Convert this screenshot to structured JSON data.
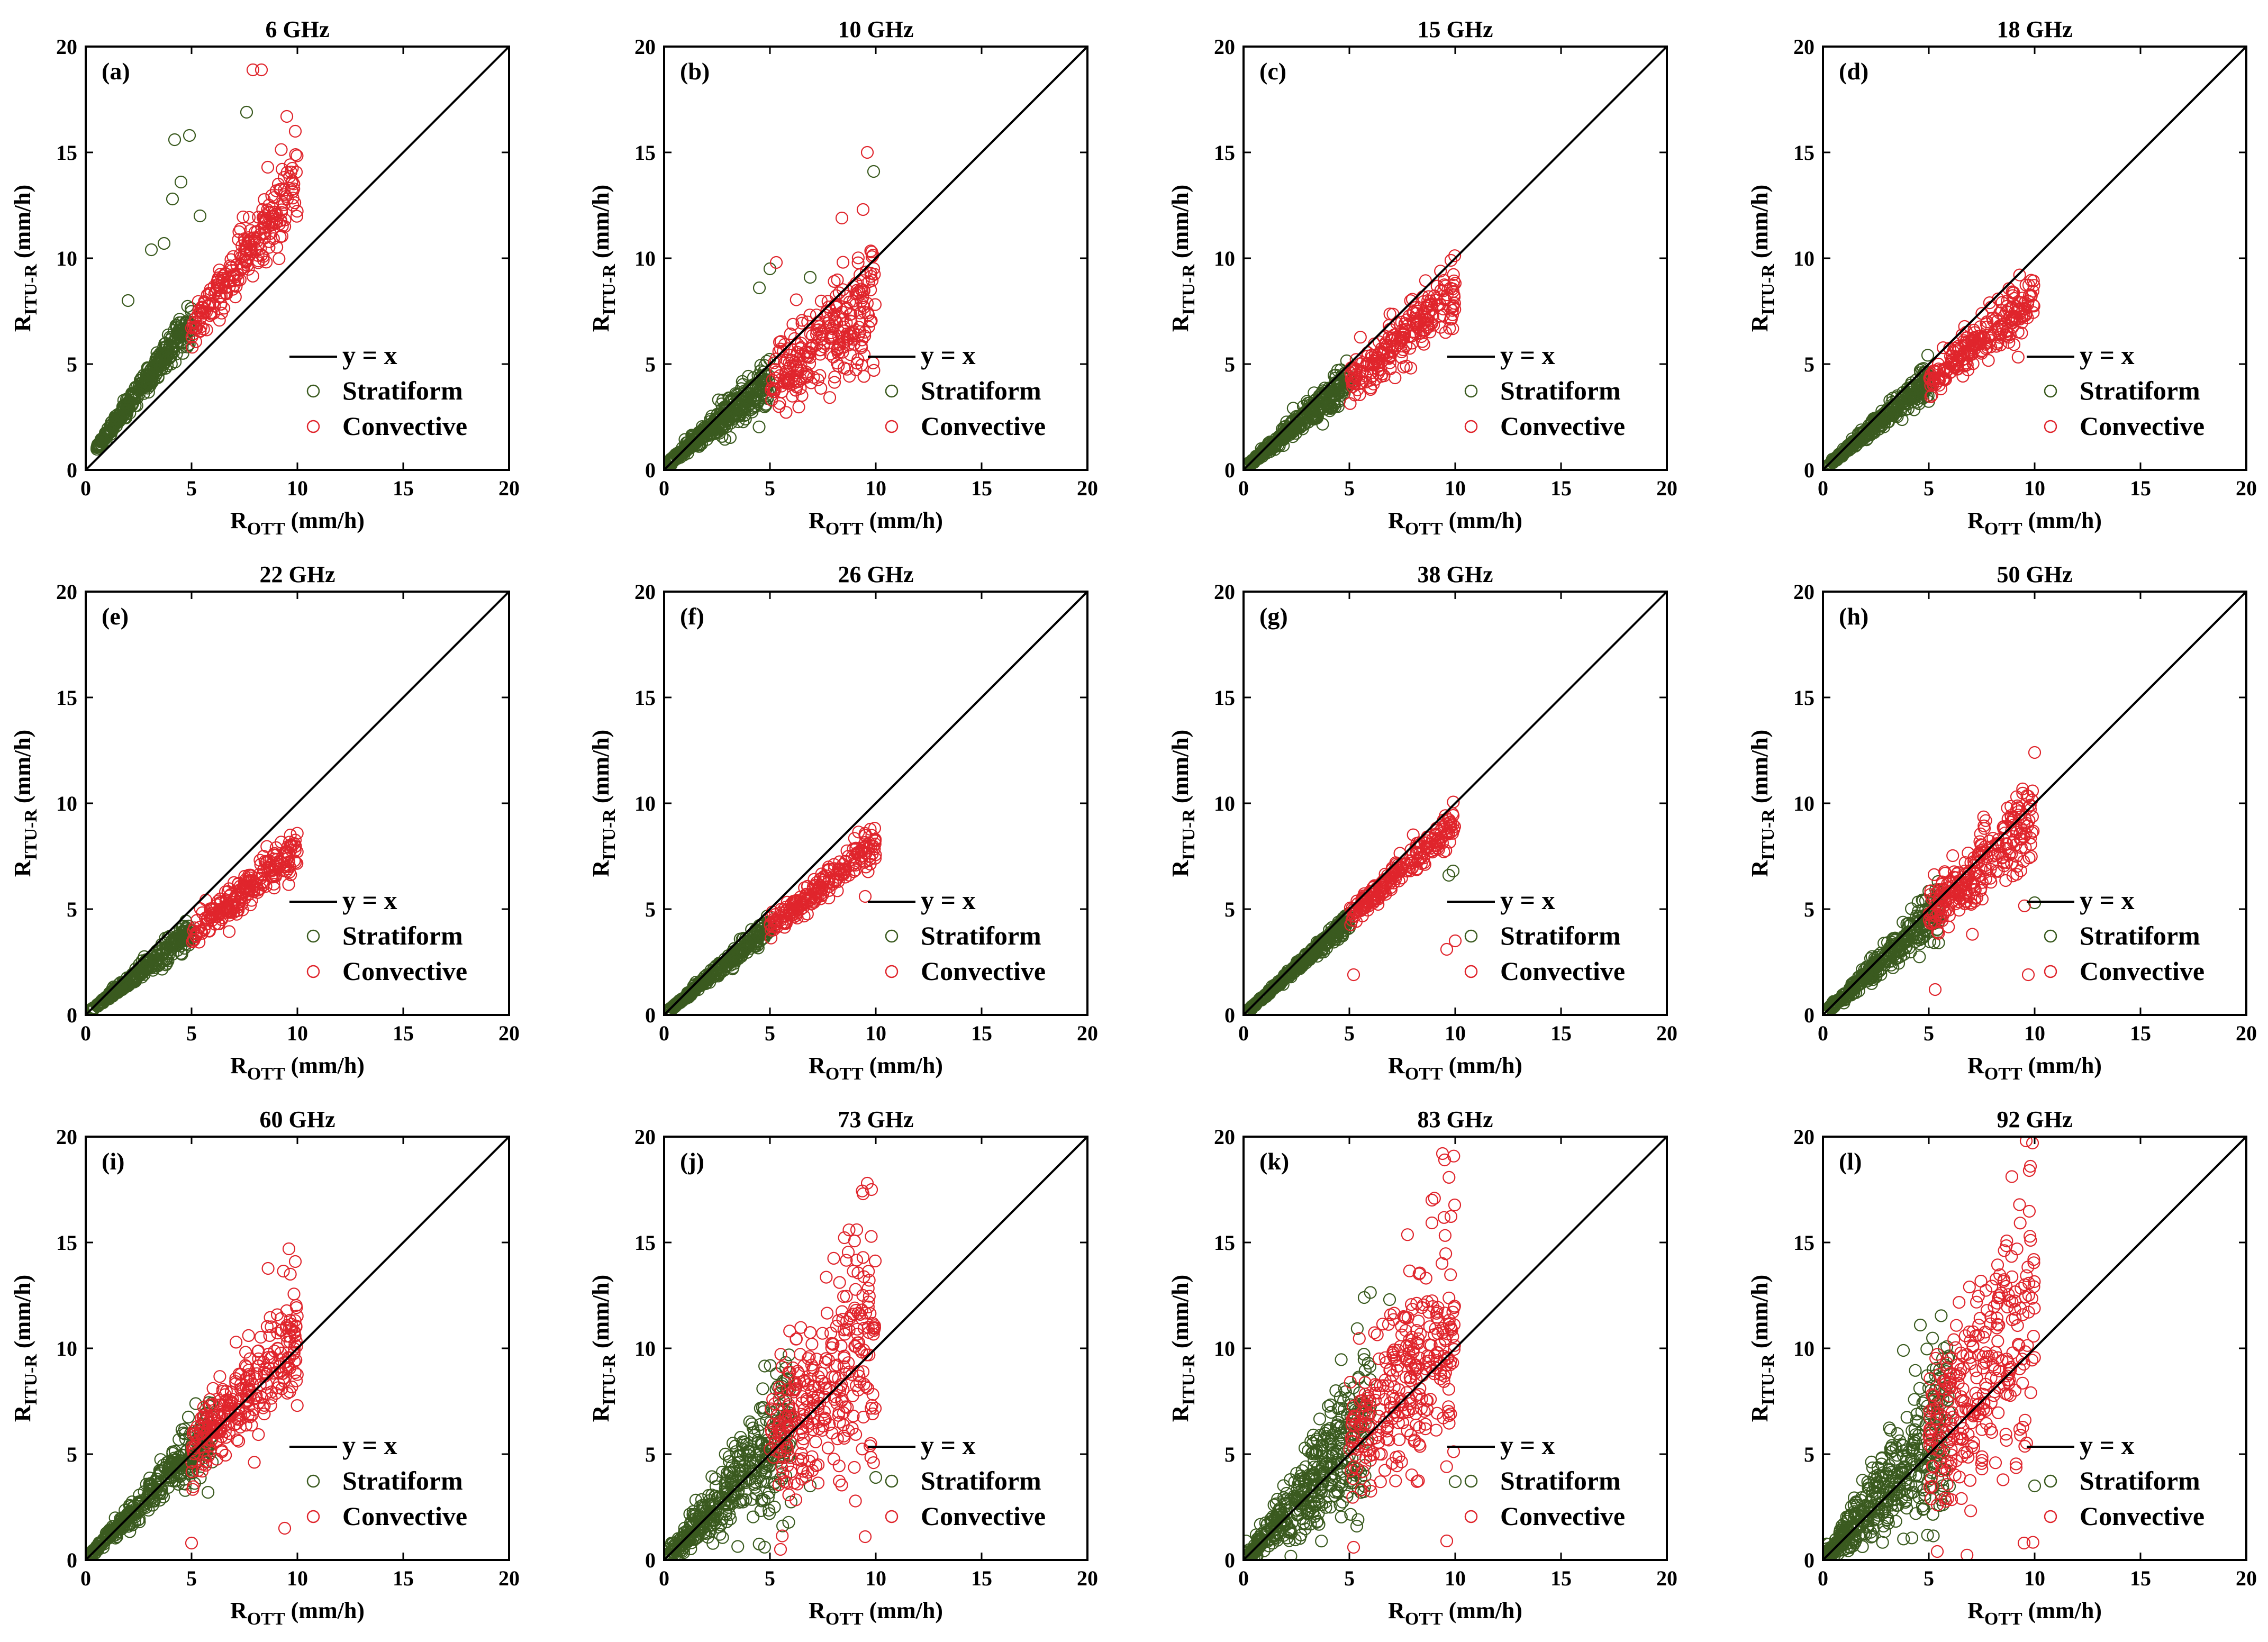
{
  "figure": {
    "colors": {
      "stratiform": "#3a5a1f",
      "convective": "#e0252c",
      "reference_line": "#000000"
    }
  },
  "chart_data": [
    {
      "type": "scatter",
      "tag": "(a)",
      "title": "6 GHz",
      "xlabel": "R",
      "xlabel_sub": "OTT",
      "xlabel_unit": " (mm/h)",
      "ylabel": "R",
      "ylabel_sub": "ITU-R",
      "ylabel_unit": " (mm/h)",
      "xlim": [
        0,
        20
      ],
      "ylim": [
        0,
        20
      ],
      "xticks": [
        "0",
        "5",
        "10",
        "15",
        "20"
      ],
      "yticks": [
        "0",
        "5",
        "10",
        "15",
        "20"
      ],
      "legend": {
        "position": "bottom-right",
        "line": "y = x",
        "stratiform": "Stratiform",
        "convective": "Convective"
      },
      "series": [
        {
          "name": "Stratiform",
          "model": {
            "a": 1.35,
            "b": 0.35,
            "spread": 0.11,
            "xmin": 0.5,
            "xmax": 5,
            "n": 360,
            "outliers": [
              [
                2.0,
                8.0
              ],
              [
                3.1,
                10.4
              ],
              [
                3.7,
                10.7
              ],
              [
                4.1,
                12.8
              ],
              [
                4.5,
                13.6
              ],
              [
                4.2,
                15.6
              ],
              [
                4.9,
                15.8
              ],
              [
                5.4,
                12.0
              ],
              [
                7.6,
                16.9
              ]
            ]
          }
        },
        {
          "name": "Convective",
          "model": {
            "a": 1.32,
            "b": 0.2,
            "spread": 0.09,
            "xmin": 5,
            "xmax": 10,
            "n": 240,
            "outliers": [
              [
                7.9,
                18.9
              ],
              [
                8.3,
                18.9
              ],
              [
                9.5,
                16.7
              ],
              [
                9.9,
                16.0
              ],
              [
                8.6,
                14.3
              ]
            ]
          }
        }
      ]
    },
    {
      "type": "scatter",
      "tag": "(b)",
      "title": "10 GHz",
      "xlabel": "R",
      "xlabel_sub": "OTT",
      "xlabel_unit": " (mm/h)",
      "ylabel": "R",
      "ylabel_sub": "ITU-R",
      "ylabel_unit": " (mm/h)",
      "xlim": [
        0,
        20
      ],
      "ylim": [
        0,
        20
      ],
      "xticks": [
        "0",
        "5",
        "10",
        "15",
        "20"
      ],
      "yticks": [
        "0",
        "5",
        "10",
        "15",
        "20"
      ],
      "legend": {
        "position": "bottom-right",
        "line": "y = x",
        "stratiform": "Stratiform",
        "convective": "Convective"
      },
      "series": [
        {
          "name": "Stratiform",
          "model": {
            "a": 0.82,
            "b": 0.15,
            "spread": 0.13,
            "xmin": 0.2,
            "xmax": 5,
            "n": 360,
            "outliers": [
              [
                4.5,
                8.6
              ],
              [
                5.0,
                9.5
              ],
              [
                6.9,
                9.1
              ],
              [
                9.9,
                14.1
              ]
            ]
          }
        },
        {
          "name": "Convective",
          "model": {
            "a": 0.78,
            "b": 0.1,
            "spread": 0.14,
            "xmin": 5,
            "xmax": 10,
            "n": 260,
            "outliers": [
              [
                9.6,
                15.0
              ],
              [
                5.3,
                9.8
              ],
              [
                9.4,
                12.3
              ],
              [
                8.4,
                11.9
              ]
            ]
          }
        }
      ]
    },
    {
      "type": "scatter",
      "tag": "(c)",
      "title": "15 GHz",
      "xlabel": "R",
      "xlabel_sub": "OTT",
      "xlabel_unit": " (mm/h)",
      "ylabel": "R",
      "ylabel_sub": "ITU-R",
      "ylabel_unit": " (mm/h)",
      "xlim": [
        0,
        20
      ],
      "ylim": [
        0,
        20
      ],
      "xticks": [
        "0",
        "5",
        "10",
        "15",
        "20"
      ],
      "yticks": [
        "0",
        "5",
        "10",
        "15",
        "20"
      ],
      "legend": {
        "position": "bottom-right",
        "line": "y = x",
        "stratiform": "Stratiform",
        "convective": "Convective"
      },
      "series": [
        {
          "name": "Stratiform",
          "model": {
            "a": 0.84,
            "b": 0.05,
            "spread": 0.1,
            "xmin": 0.2,
            "xmax": 5,
            "n": 340,
            "outliers": []
          }
        },
        {
          "name": "Convective",
          "model": {
            "a": 0.82,
            "b": 0.05,
            "spread": 0.08,
            "xmin": 5,
            "xmax": 10,
            "n": 240,
            "outliers": [
              [
                9.8,
                9.9
              ]
            ]
          }
        }
      ]
    },
    {
      "type": "scatter",
      "tag": "(d)",
      "title": "18 GHz",
      "xlabel": "R",
      "xlabel_sub": "OTT",
      "xlabel_unit": " (mm/h)",
      "ylabel": "R",
      "ylabel_sub": "ITU-R",
      "ylabel_unit": " (mm/h)",
      "xlim": [
        0,
        20
      ],
      "ylim": [
        0,
        20
      ],
      "xticks": [
        "0",
        "5",
        "10",
        "15",
        "20"
      ],
      "yticks": [
        "0",
        "5",
        "10",
        "15",
        "20"
      ],
      "legend": {
        "position": "bottom-right",
        "line": "y = x",
        "stratiform": "Stratiform",
        "convective": "Convective"
      },
      "series": [
        {
          "name": "Stratiform",
          "model": {
            "a": 0.86,
            "b": 0.0,
            "spread": 0.08,
            "xmin": 0.2,
            "xmax": 5,
            "n": 340,
            "outliers": []
          }
        },
        {
          "name": "Convective",
          "model": {
            "a": 0.82,
            "b": 0.0,
            "spread": 0.07,
            "xmin": 5,
            "xmax": 10,
            "n": 240,
            "outliers": []
          }
        }
      ]
    },
    {
      "type": "scatter",
      "tag": "(e)",
      "title": "22 GHz",
      "xlabel": "R",
      "xlabel_sub": "OTT",
      "xlabel_unit": " (mm/h)",
      "ylabel": "R",
      "ylabel_sub": "ITU-R",
      "ylabel_unit": " (mm/h)",
      "xlim": [
        0,
        20
      ],
      "ylim": [
        0,
        20
      ],
      "xticks": [
        "0",
        "5",
        "10",
        "15",
        "20"
      ],
      "yticks": [
        "0",
        "5",
        "10",
        "15",
        "20"
      ],
      "legend": {
        "position": "bottom-right",
        "line": "y = x",
        "stratiform": "Stratiform",
        "convective": "Convective"
      },
      "series": [
        {
          "name": "Stratiform",
          "model": {
            "a": 0.8,
            "b": 0.0,
            "spread": 0.07,
            "xmin": 0.2,
            "xmax": 5,
            "n": 330,
            "outliers": []
          }
        },
        {
          "name": "Convective",
          "model": {
            "a": 0.78,
            "b": 0.0,
            "spread": 0.06,
            "xmin": 5,
            "xmax": 10,
            "n": 230,
            "outliers": []
          }
        }
      ]
    },
    {
      "type": "scatter",
      "tag": "(f)",
      "title": "26 GHz",
      "xlabel": "R",
      "xlabel_sub": "OTT",
      "xlabel_unit": " (mm/h)",
      "ylabel": "R",
      "ylabel_sub": "ITU-R",
      "ylabel_unit": " (mm/h)",
      "xlim": [
        0,
        20
      ],
      "ylim": [
        0,
        20
      ],
      "xticks": [
        "0",
        "5",
        "10",
        "15",
        "20"
      ],
      "yticks": [
        "0",
        "5",
        "10",
        "15",
        "20"
      ],
      "legend": {
        "position": "bottom-right",
        "line": "y = x",
        "stratiform": "Stratiform",
        "convective": "Convective"
      },
      "series": [
        {
          "name": "Stratiform",
          "model": {
            "a": 0.84,
            "b": 0.0,
            "spread": 0.06,
            "xmin": 0.2,
            "xmax": 5,
            "n": 330,
            "outliers": []
          }
        },
        {
          "name": "Convective",
          "model": {
            "a": 0.82,
            "b": 0.0,
            "spread": 0.05,
            "xmin": 5,
            "xmax": 10,
            "n": 220,
            "outliers": [
              [
                9.5,
                5.6
              ]
            ]
          }
        }
      ]
    },
    {
      "type": "scatter",
      "tag": "(g)",
      "title": "38 GHz",
      "xlabel": "R",
      "xlabel_sub": "OTT",
      "xlabel_unit": " (mm/h)",
      "ylabel": "R",
      "ylabel_sub": "ITU-R",
      "ylabel_unit": " (mm/h)",
      "xlim": [
        0,
        20
      ],
      "ylim": [
        0,
        20
      ],
      "xticks": [
        "0",
        "5",
        "10",
        "15",
        "20"
      ],
      "yticks": [
        "0",
        "5",
        "10",
        "15",
        "20"
      ],
      "legend": {
        "position": "bottom-right",
        "line": "y = x",
        "stratiform": "Stratiform",
        "convective": "Convective"
      },
      "series": [
        {
          "name": "Stratiform",
          "model": {
            "a": 0.9,
            "b": 0.0,
            "spread": 0.05,
            "xmin": 0.2,
            "xmax": 5,
            "n": 320,
            "outliers": [
              [
                9.9,
                6.8
              ],
              [
                9.7,
                6.6
              ]
            ]
          }
        },
        {
          "name": "Convective",
          "model": {
            "a": 0.92,
            "b": 0.0,
            "spread": 0.04,
            "xmin": 5,
            "xmax": 10,
            "n": 220,
            "outliers": [
              [
                5.2,
                1.9
              ],
              [
                9.6,
                3.1
              ],
              [
                10.0,
                3.5
              ]
            ]
          }
        }
      ]
    },
    {
      "type": "scatter",
      "tag": "(h)",
      "title": "50 GHz",
      "xlabel": "R",
      "xlabel_sub": "OTT",
      "xlabel_unit": " (mm/h)",
      "ylabel": "R",
      "ylabel_sub": "ITU-R",
      "ylabel_unit": " (mm/h)",
      "xlim": [
        0,
        20
      ],
      "ylim": [
        0,
        20
      ],
      "xticks": [
        "0",
        "5",
        "10",
        "15",
        "20"
      ],
      "yticks": [
        "0",
        "5",
        "10",
        "15",
        "20"
      ],
      "legend": {
        "position": "bottom-right",
        "line": "y = x",
        "stratiform": "Stratiform",
        "convective": "Convective"
      },
      "series": [
        {
          "name": "Stratiform",
          "model": {
            "a": 0.92,
            "b": 0.0,
            "spread": 0.12,
            "xmin": 0.2,
            "xmax": 5.5,
            "n": 340,
            "outliers": [
              [
                10.0,
                5.3
              ]
            ]
          }
        },
        {
          "name": "Convective",
          "model": {
            "a": 0.95,
            "b": 0.0,
            "spread": 0.11,
            "xmin": 5,
            "xmax": 10,
            "n": 260,
            "outliers": [
              [
                10.0,
                12.4
              ],
              [
                5.3,
                1.2
              ],
              [
                9.7,
                1.9
              ]
            ]
          }
        }
      ]
    },
    {
      "type": "scatter",
      "tag": "(i)",
      "title": "60 GHz",
      "xlabel": "R",
      "xlabel_sub": "OTT",
      "xlabel_unit": " (mm/h)",
      "ylabel": "R",
      "ylabel_sub": "ITU-R",
      "ylabel_unit": " (mm/h)",
      "xlim": [
        0,
        20
      ],
      "ylim": [
        0,
        20
      ],
      "xticks": [
        "0",
        "5",
        "10",
        "15",
        "20"
      ],
      "yticks": [
        "0",
        "5",
        "10",
        "15",
        "20"
      ],
      "legend": {
        "position": "bottom-right",
        "line": "y = x",
        "stratiform": "Stratiform",
        "convective": "Convective"
      },
      "series": [
        {
          "name": "Stratiform",
          "model": {
            "a": 1.02,
            "b": 0.0,
            "spread": 0.14,
            "xmin": 0.2,
            "xmax": 6,
            "n": 360,
            "outliers": []
          }
        },
        {
          "name": "Convective",
          "model": {
            "a": 1.05,
            "b": 0.0,
            "spread": 0.14,
            "xmin": 5,
            "xmax": 10,
            "n": 280,
            "outliers": [
              [
                9.6,
                14.7
              ],
              [
                9.9,
                14.1
              ],
              [
                5.0,
                0.8
              ],
              [
                9.4,
                1.5
              ]
            ]
          }
        }
      ]
    },
    {
      "type": "scatter",
      "tag": "(j)",
      "title": "73 GHz",
      "xlabel": "R",
      "xlabel_sub": "OTT",
      "xlabel_unit": " (mm/h)",
      "ylabel": "R",
      "ylabel_sub": "ITU-R",
      "ylabel_unit": " (mm/h)",
      "xlim": [
        0,
        20
      ],
      "ylim": [
        0,
        20
      ],
      "xticks": [
        "0",
        "5",
        "10",
        "15",
        "20"
      ],
      "yticks": [
        "0",
        "5",
        "10",
        "15",
        "20"
      ],
      "legend": {
        "position": "bottom-right",
        "line": "y = x",
        "stratiform": "Stratiform",
        "convective": "Convective"
      },
      "series": [
        {
          "name": "Stratiform",
          "model": {
            "a": 1.05,
            "b": 0.0,
            "spread": 0.3,
            "xmin": 0.1,
            "xmax": 6,
            "n": 420,
            "outliers": [
              [
                10.0,
                3.9
              ],
              [
                6.9,
                3.5
              ]
            ]
          }
        },
        {
          "name": "Convective",
          "model": {
            "a": 1.08,
            "b": 0.0,
            "spread": 0.28,
            "xmin": 5,
            "xmax": 10,
            "n": 300,
            "outliers": [
              [
                9.6,
                17.8
              ],
              [
                9.4,
                17.3
              ],
              [
                9.8,
                17.5
              ],
              [
                9.5,
                1.1
              ],
              [
                5.5,
                0.5
              ],
              [
                9.1,
                15.6
              ]
            ]
          }
        }
      ]
    },
    {
      "type": "scatter",
      "tag": "(k)",
      "title": "83 GHz",
      "xlabel": "R",
      "xlabel_sub": "OTT",
      "xlabel_unit": " (mm/h)",
      "ylabel": "R",
      "ylabel_sub": "ITU-R",
      "ylabel_unit": " (mm/h)",
      "xlim": [
        0,
        20
      ],
      "ylim": [
        0,
        20
      ],
      "xticks": [
        "0",
        "5",
        "10",
        "15",
        "20"
      ],
      "yticks": [
        "0",
        "5",
        "10",
        "15",
        "20"
      ],
      "legend": {
        "position": "bottom-right",
        "line": "y = x",
        "stratiform": "Stratiform",
        "convective": "Convective"
      },
      "series": [
        {
          "name": "Stratiform",
          "model": {
            "a": 1.1,
            "b": 0.0,
            "spread": 0.35,
            "xmin": 0.1,
            "xmax": 6,
            "n": 440,
            "outliers": [
              [
                10.0,
                3.7
              ],
              [
                5.7,
                12.4
              ],
              [
                6.9,
                12.3
              ]
            ]
          }
        },
        {
          "name": "Convective",
          "model": {
            "a": 1.1,
            "b": 0.0,
            "spread": 0.3,
            "xmin": 5,
            "xmax": 10,
            "n": 300,
            "outliers": [
              [
                9.4,
                19.2
              ],
              [
                9.5,
                18.9
              ],
              [
                8.9,
                17.0
              ],
              [
                9.6,
                0.9
              ],
              [
                5.2,
                0.6
              ]
            ]
          }
        }
      ]
    },
    {
      "type": "scatter",
      "tag": "(l)",
      "title": "92 GHz",
      "xlabel": "R",
      "xlabel_sub": "OTT",
      "xlabel_unit": " (mm/h)",
      "ylabel": "R",
      "ylabel_sub": "ITU-R",
      "ylabel_unit": " (mm/h)",
      "xlim": [
        0,
        20
      ],
      "ylim": [
        0,
        20
      ],
      "xticks": [
        "0",
        "5",
        "10",
        "15",
        "20"
      ],
      "yticks": [
        "0",
        "5",
        "10",
        "15",
        "20"
      ],
      "legend": {
        "position": "bottom-right",
        "line": "y = x",
        "stratiform": "Stratiform",
        "convective": "Convective"
      },
      "series": [
        {
          "name": "Stratiform",
          "model": {
            "a": 1.12,
            "b": 0.0,
            "spread": 0.38,
            "xmin": 0.1,
            "xmax": 6,
            "n": 440,
            "outliers": [
              [
                4.6,
                11.1
              ],
              [
                3.8,
                9.9
              ],
              [
                10.0,
                3.5
              ]
            ]
          }
        },
        {
          "name": "Convective",
          "model": {
            "a": 1.12,
            "b": 0.0,
            "spread": 0.32,
            "xmin": 5,
            "xmax": 10,
            "n": 300,
            "outliers": [
              [
                9.6,
                19.8
              ],
              [
                9.9,
                19.7
              ],
              [
                9.8,
                18.6
              ],
              [
                9.5,
                0.8
              ],
              [
                5.4,
                0.4
              ]
            ]
          }
        }
      ]
    }
  ]
}
